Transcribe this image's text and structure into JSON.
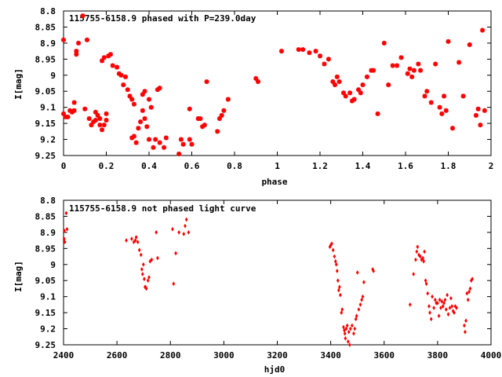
{
  "marker_color": "#ff0000",
  "chart_data": [
    {
      "type": "scatter",
      "title": "115755-6158.9 phased with P=239.0day",
      "xlabel": "phase",
      "ylabel": "I[mag]",
      "xlim": [
        0,
        2
      ],
      "ylim": [
        8.8,
        9.25
      ],
      "y_inverted": true,
      "grid": false,
      "xticks": [
        "0",
        "0.2",
        "0.4",
        "0.6",
        "0.8",
        "1",
        "1.2",
        "1.4",
        "1.6",
        "1.8",
        "2"
      ],
      "yticks": [
        "8.8",
        "8.85",
        "8.9",
        "8.95",
        "9",
        "9.05",
        "9.1",
        "9.15",
        "9.2",
        "9.25"
      ],
      "marker": "star",
      "series": [
        {
          "points": [
            [
              0.0,
              8.89
            ],
            [
              0.0,
              9.12
            ],
            [
              0.01,
              9.13
            ],
            [
              0.02,
              9.13
            ],
            [
              0.03,
              9.11
            ],
            [
              0.04,
              9.115
            ],
            [
              0.05,
              9.11
            ],
            [
              0.05,
              9.085
            ],
            [
              0.06,
              8.935
            ],
            [
              0.06,
              8.925
            ],
            [
              0.07,
              8.9
            ],
            [
              0.09,
              8.815
            ],
            [
              0.1,
              9.105
            ],
            [
              0.11,
              8.89
            ],
            [
              0.12,
              9.135
            ],
            [
              0.13,
              9.155
            ],
            [
              0.14,
              9.145
            ],
            [
              0.15,
              9.14
            ],
            [
              0.15,
              9.115
            ],
            [
              0.16,
              9.125
            ],
            [
              0.17,
              9.135
            ],
            [
              0.17,
              9.155
            ],
            [
              0.18,
              9.17
            ],
            [
              0.18,
              8.955
            ],
            [
              0.19,
              8.945
            ],
            [
              0.19,
              9.155
            ],
            [
              0.2,
              9.12
            ],
            [
              0.2,
              9.14
            ],
            [
              0.21,
              8.94
            ],
            [
              0.22,
              8.935
            ],
            [
              0.23,
              8.97
            ],
            [
              0.25,
              8.975
            ],
            [
              0.26,
              8.995
            ],
            [
              0.27,
              9.0
            ],
            [
              0.28,
              9.03
            ],
            [
              0.29,
              9.005
            ],
            [
              0.3,
              9.045
            ],
            [
              0.31,
              9.065
            ],
            [
              0.32,
              9.075
            ],
            [
              0.32,
              9.195
            ],
            [
              0.33,
              9.19
            ],
            [
              0.33,
              9.09
            ],
            [
              0.34,
              9.21
            ],
            [
              0.35,
              9.165
            ],
            [
              0.36,
              9.145
            ],
            [
              0.37,
              9.06
            ],
            [
              0.37,
              9.11
            ],
            [
              0.38,
              9.05
            ],
            [
              0.38,
              9.135
            ],
            [
              0.39,
              9.16
            ],
            [
              0.4,
              9.075
            ],
            [
              0.4,
              9.2
            ],
            [
              0.41,
              9.1
            ],
            [
              0.42,
              9.225
            ],
            [
              0.43,
              9.2
            ],
            [
              0.44,
              9.045
            ],
            [
              0.45,
              9.04
            ],
            [
              0.45,
              9.21
            ],
            [
              0.47,
              9.225
            ],
            [
              0.48,
              9.195
            ],
            [
              0.54,
              9.245
            ],
            [
              0.55,
              9.2
            ],
            [
              0.56,
              9.215
            ],
            [
              0.59,
              9.2
            ],
            [
              0.59,
              9.105
            ],
            [
              0.6,
              9.215
            ],
            [
              0.63,
              9.135
            ],
            [
              0.64,
              9.135
            ],
            [
              0.65,
              9.16
            ],
            [
              0.66,
              9.155
            ],
            [
              0.67,
              9.02
            ],
            [
              0.72,
              9.175
            ],
            [
              0.73,
              9.135
            ],
            [
              0.74,
              9.125
            ],
            [
              0.75,
              9.11
            ],
            [
              0.77,
              9.075
            ],
            [
              0.9,
              9.01
            ],
            [
              0.91,
              9.02
            ],
            [
              1.02,
              8.925
            ],
            [
              1.1,
              8.92
            ],
            [
              1.12,
              8.92
            ],
            [
              1.15,
              8.93
            ],
            [
              1.18,
              8.925
            ],
            [
              1.2,
              8.94
            ],
            [
              1.22,
              8.965
            ],
            [
              1.24,
              8.95
            ],
            [
              1.26,
              9.02
            ],
            [
              1.27,
              9.03
            ],
            [
              1.28,
              9.005
            ],
            [
              1.29,
              9.02
            ],
            [
              1.31,
              9.055
            ],
            [
              1.32,
              9.065
            ],
            [
              1.34,
              9.055
            ],
            [
              1.35,
              9.08
            ],
            [
              1.36,
              9.075
            ],
            [
              1.38,
              9.045
            ],
            [
              1.39,
              9.055
            ],
            [
              1.4,
              9.03
            ],
            [
              1.42,
              9.005
            ],
            [
              1.44,
              8.985
            ],
            [
              1.45,
              8.985
            ],
            [
              1.47,
              9.12
            ],
            [
              1.5,
              8.9
            ],
            [
              1.52,
              9.03
            ],
            [
              1.54,
              8.97
            ],
            [
              1.56,
              8.97
            ],
            [
              1.58,
              8.945
            ],
            [
              1.61,
              8.995
            ],
            [
              1.62,
              8.98
            ],
            [
              1.63,
              9.005
            ],
            [
              1.64,
              8.985
            ],
            [
              1.66,
              8.965
            ],
            [
              1.67,
              8.985
            ],
            [
              1.69,
              9.065
            ],
            [
              1.7,
              9.05
            ],
            [
              1.72,
              9.085
            ],
            [
              1.74,
              8.965
            ],
            [
              1.76,
              9.1
            ],
            [
              1.77,
              9.12
            ],
            [
              1.78,
              9.065
            ],
            [
              1.79,
              9.11
            ],
            [
              1.8,
              8.895
            ],
            [
              1.82,
              9.165
            ],
            [
              1.85,
              8.96
            ],
            [
              1.87,
              9.065
            ],
            [
              1.9,
              8.905
            ],
            [
              1.93,
              9.125
            ],
            [
              1.94,
              9.105
            ],
            [
              1.95,
              9.155
            ],
            [
              1.96,
              8.86
            ],
            [
              1.97,
              9.11
            ]
          ]
        }
      ]
    },
    {
      "type": "scatter",
      "title": "115755-6158.9 not phased light curve",
      "xlabel": "hjd0",
      "ylabel": "I[mag]",
      "xlim": [
        2400,
        4000
      ],
      "ylim": [
        8.8,
        9.25
      ],
      "y_inverted": true,
      "grid": false,
      "xticks": [
        "2400",
        "2600",
        "2800",
        "3000",
        "3200",
        "3400",
        "3600",
        "3800",
        "4000"
      ],
      "yticks": [
        "8.8",
        "8.85",
        "8.9",
        "8.95",
        "9",
        "9.05",
        "9.1",
        "9.15",
        "9.2",
        "9.25"
      ],
      "marker": "diamond",
      "series": [
        {
          "points": [
            [
              2402,
              8.92
            ],
            [
              2403,
              8.895
            ],
            [
              2405,
              8.93
            ],
            [
              2410,
              8.84
            ],
            [
              2413,
              8.89
            ],
            [
              2635,
              8.925
            ],
            [
              2655,
              8.92
            ],
            [
              2663,
              8.93
            ],
            [
              2669,
              8.925
            ],
            [
              2672,
              8.915
            ],
            [
              2678,
              8.93
            ],
            [
              2684,
              8.955
            ],
            [
              2690,
              8.97
            ],
            [
              2693,
              9.015
            ],
            [
              2696,
              9.03
            ],
            [
              2699,
              9.0
            ],
            [
              2702,
              9.045
            ],
            [
              2705,
              9.07
            ],
            [
              2707,
              9.07
            ],
            [
              2710,
              9.075
            ],
            [
              2716,
              9.05
            ],
            [
              2720,
              9.04
            ],
            [
              2724,
              8.99
            ],
            [
              2730,
              8.985
            ],
            [
              2747,
              8.9
            ],
            [
              2752,
              8.98
            ],
            [
              2808,
              8.89
            ],
            [
              2812,
              9.06
            ],
            [
              2820,
              8.965
            ],
            [
              2832,
              8.9
            ],
            [
              2850,
              8.905
            ],
            [
              2855,
              8.88
            ],
            [
              2860,
              8.86
            ],
            [
              2868,
              8.9
            ],
            [
              3397,
              8.945
            ],
            [
              3400,
              8.94
            ],
            [
              3404,
              8.935
            ],
            [
              3409,
              8.955
            ],
            [
              3414,
              8.975
            ],
            [
              3418,
              8.99
            ],
            [
              3421,
              9.0
            ],
            [
              3424,
              9.02
            ],
            [
              3427,
              9.05
            ],
            [
              3430,
              9.08
            ],
            [
              3433,
              9.07
            ],
            [
              3436,
              9.095
            ],
            [
              3440,
              9.15
            ],
            [
              3443,
              9.14
            ],
            [
              3448,
              9.195
            ],
            [
              3451,
              9.205
            ],
            [
              3453,
              9.215
            ],
            [
              3455,
              9.23
            ],
            [
              3458,
              9.2
            ],
            [
              3462,
              9.19
            ],
            [
              3465,
              9.24
            ],
            [
              3468,
              9.21
            ],
            [
              3471,
              9.25
            ],
            [
              3474,
              9.2
            ],
            [
              3480,
              9.19
            ],
            [
              3486,
              9.215
            ],
            [
              3490,
              9.2
            ],
            [
              3494,
              9.17
            ],
            [
              3497,
              9.16
            ],
            [
              3500,
              9.025
            ],
            [
              3505,
              9.14
            ],
            [
              3511,
              9.125
            ],
            [
              3516,
              9.11
            ],
            [
              3520,
              9.1
            ],
            [
              3524,
              9.055
            ],
            [
              3557,
              9.015
            ],
            [
              3560,
              9.02
            ],
            [
              3697,
              9.125
            ],
            [
              3710,
              9.03
            ],
            [
              3718,
              8.985
            ],
            [
              3722,
              8.96
            ],
            [
              3725,
              8.945
            ],
            [
              3730,
              8.97
            ],
            [
              3735,
              8.975
            ],
            [
              3740,
              8.985
            ],
            [
              3745,
              8.98
            ],
            [
              3748,
              8.99
            ],
            [
              3751,
              8.96
            ],
            [
              3755,
              9.05
            ],
            [
              3758,
              9.06
            ],
            [
              3763,
              9.09
            ],
            [
              3768,
              9.13
            ],
            [
              3771,
              9.15
            ],
            [
              3776,
              9.17
            ],
            [
              3780,
              9.1
            ],
            [
              3786,
              9.135
            ],
            [
              3791,
              9.11
            ],
            [
              3795,
              9.12
            ],
            [
              3800,
              9.12
            ],
            [
              3805,
              9.16
            ],
            [
              3808,
              9.11
            ],
            [
              3812,
              9.135
            ],
            [
              3816,
              9.115
            ],
            [
              3820,
              9.13
            ],
            [
              3824,
              9.12
            ],
            [
              3828,
              9.11
            ],
            [
              3832,
              9.14
            ],
            [
              3836,
              9.095
            ],
            [
              3840,
              9.155
            ],
            [
              3846,
              9.135
            ],
            [
              3850,
              9.105
            ],
            [
              3854,
              9.13
            ],
            [
              3858,
              9.145
            ],
            [
              3862,
              9.15
            ],
            [
              3866,
              9.13
            ],
            [
              3871,
              9.135
            ],
            [
              3900,
              9.19
            ],
            [
              3903,
              9.21
            ],
            [
              3906,
              9.175
            ],
            [
              3910,
              9.09
            ],
            [
              3914,
              9.11
            ],
            [
              3918,
              9.085
            ],
            [
              3922,
              9.075
            ],
            [
              3926,
              9.05
            ],
            [
              3930,
              9.045
            ]
          ]
        }
      ]
    }
  ]
}
